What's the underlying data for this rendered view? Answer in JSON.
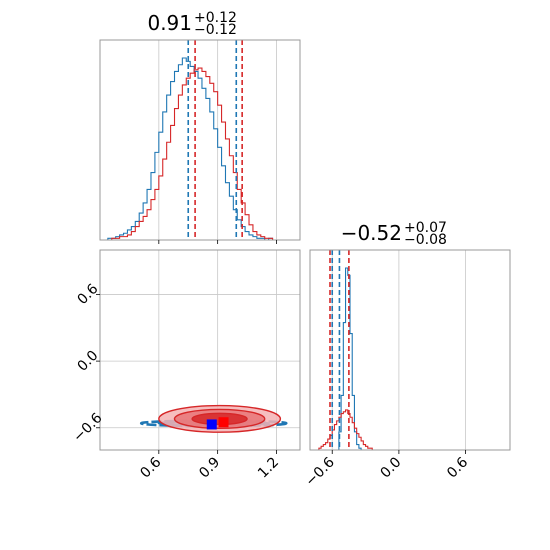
{
  "chart_data": [
    {
      "type": "histogram",
      "panel": "top-left",
      "title": {
        "value": "0.91",
        "plus": "+0.12",
        "minus": "−0.12"
      },
      "xlim": [
        0.3,
        1.32
      ],
      "x_ticks": [
        0.6,
        0.9,
        1.2
      ],
      "grid": true,
      "series": [
        {
          "color": "#1f77b4",
          "bin_start": 0.3,
          "bin_width": 0.02,
          "counts": [
            0,
            0,
            1,
            1,
            2,
            3,
            4,
            6,
            8,
            11,
            16,
            22,
            30,
            40,
            52,
            64,
            76,
            86,
            94,
            100,
            104,
            108,
            106,
            103,
            100,
            96,
            90,
            84,
            76,
            66,
            55,
            44,
            34,
            26,
            18,
            12,
            8,
            5,
            3,
            2,
            1,
            1,
            0,
            1,
            0,
            0,
            0,
            0,
            0,
            0,
            0
          ],
          "quantiles": [
            0.75,
            0.995
          ]
        },
        {
          "color": "#d62728",
          "bin_start": 0.3,
          "bin_width": 0.02,
          "counts": [
            0,
            0,
            0,
            1,
            1,
            2,
            2,
            3,
            5,
            8,
            11,
            14,
            18,
            24,
            30,
            38,
            48,
            58,
            68,
            78,
            86,
            92,
            96,
            99,
            101,
            102,
            100,
            97,
            93,
            88,
            80,
            70,
            60,
            50,
            40,
            30,
            22,
            15,
            9,
            5,
            3,
            2,
            1,
            1,
            0,
            0,
            0,
            0,
            0,
            0,
            0
          ],
          "quantiles": [
            0.785,
            1.025
          ]
        }
      ]
    },
    {
      "type": "contour",
      "panel": "bottom-left",
      "xlim": [
        0.3,
        1.32
      ],
      "ylim": [
        -0.8,
        1.0
      ],
      "x_ticks": [
        0.6,
        0.9,
        1.2
      ],
      "x_tick_labels": [
        "0.6",
        "0.9",
        "1.2"
      ],
      "y_ticks": [
        0.6,
        0.0,
        -0.6
      ],
      "y_tick_labels": [
        "0.6",
        "0.0",
        "−0.6"
      ],
      "grid": true,
      "series": [
        {
          "color": "#1f77b4",
          "center": [
            0.88,
            -0.56
          ],
          "spread_x": [
            0.37,
            0.28,
            0.17
          ],
          "spread_y": [
            0.025,
            0.018,
            0.012
          ]
        },
        {
          "color": "#d62728",
          "center": [
            0.91,
            -0.52
          ],
          "spread_x": [
            0.31,
            0.23,
            0.14
          ],
          "spread_y": [
            0.12,
            0.085,
            0.05
          ]
        }
      ],
      "markers": [
        {
          "color": "#0000ff",
          "x": 0.87,
          "y": -0.57
        },
        {
          "color": "#ff0000",
          "x": 0.93,
          "y": -0.55
        }
      ]
    },
    {
      "type": "histogram",
      "panel": "bottom-right",
      "title": {
        "value": "−0.52",
        "plus": "+0.07",
        "minus": "−0.08"
      },
      "xlim": [
        -0.8,
        1.0
      ],
      "x_ticks": [
        -0.6,
        0.0,
        0.6
      ],
      "x_tick_labels": [
        "−0.6",
        "0.0",
        "0.6"
      ],
      "grid": true,
      "series": [
        {
          "color": "#1f77b4",
          "bin_start": -0.8,
          "bin_width": 0.02,
          "counts": [
            0,
            0,
            0,
            0,
            0,
            0,
            0,
            0,
            0,
            0,
            0,
            0,
            0,
            10,
            30,
            70,
            100,
            96,
            64,
            30,
            10,
            3,
            1,
            0,
            0,
            0,
            0,
            0,
            0,
            0,
            0,
            0,
            0,
            0,
            0,
            0,
            0,
            0,
            0,
            0,
            0,
            0,
            0,
            0,
            0,
            0,
            0,
            0,
            0,
            0,
            0,
            0,
            0,
            0,
            0,
            0,
            0,
            0,
            0,
            0,
            0,
            0,
            0,
            0,
            0,
            0,
            0,
            0,
            0,
            0,
            0,
            0,
            0,
            0,
            0,
            0,
            0,
            0,
            0,
            0,
            0,
            0,
            0,
            0,
            0,
            0,
            0,
            0,
            0,
            0
          ],
          "quantiles": [
            -0.6,
            -0.535
          ]
        },
        {
          "color": "#d62728",
          "bin_start": -0.8,
          "bin_width": 0.02,
          "counts": [
            0,
            0,
            0,
            0,
            1,
            2,
            3,
            4,
            6,
            8,
            11,
            14,
            16,
            18,
            20,
            21,
            22,
            20,
            18,
            15,
            12,
            9,
            7,
            5,
            3,
            2,
            1,
            1,
            0,
            0,
            0,
            0,
            0,
            0,
            0,
            0,
            0,
            0,
            0,
            0,
            0,
            0,
            0,
            0,
            0,
            0,
            0,
            0,
            0,
            0,
            0,
            0,
            0,
            0,
            0,
            0,
            0,
            0,
            0,
            0,
            0,
            0,
            0,
            0,
            0,
            0,
            0,
            0,
            0,
            0,
            0,
            0,
            0,
            0,
            0,
            0,
            0,
            0,
            0,
            0,
            0,
            0,
            0,
            0,
            0,
            0,
            0,
            0,
            0,
            0
          ],
          "quantiles": [
            -0.62,
            -0.45
          ]
        }
      ]
    }
  ]
}
